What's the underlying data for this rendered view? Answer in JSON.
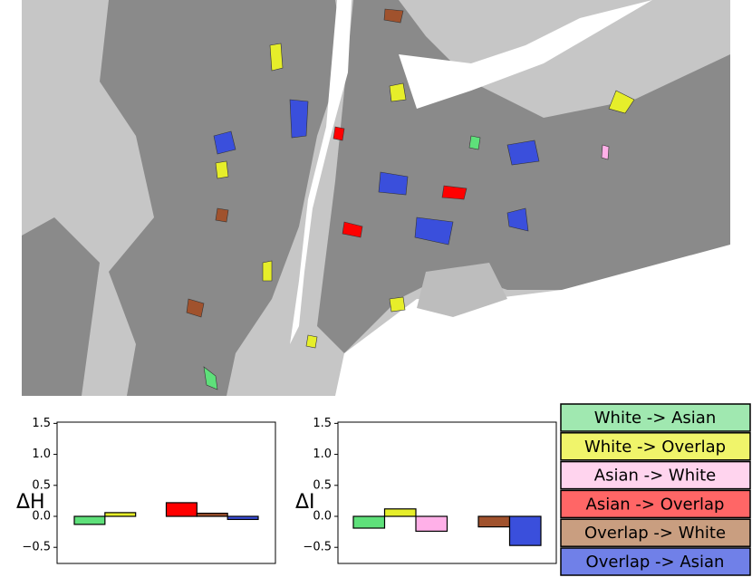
{
  "chart_data": [
    {
      "type": "bar",
      "ylabel": "ΔH",
      "values": [
        -0.13,
        0.06,
        0.0,
        0.22,
        0.05,
        -0.05
      ],
      "colors": [
        "#5ee07a",
        "#e6ee2a",
        "#ffb0e8",
        "#ff0000",
        "#a0522d",
        "#3a4fdc"
      ],
      "ylim": [
        -0.76,
        1.52
      ],
      "yticks": [
        1.5,
        {
          "value": 1.0,
          "label": "1.0"
        },
        0.5,
        {
          "value": 0.0,
          "label": "0.0"
        },
        {
          "value": -0.5,
          "label": "−0.5"
        }
      ]
    },
    {
      "type": "bar",
      "ylabel": "ΔI",
      "values": [
        -0.19,
        0.12,
        -0.24,
        0.0,
        -0.17,
        -0.47
      ],
      "colors": [
        "#5ee07a",
        "#e6ee2a",
        "#ffb0e8",
        "#ff0000",
        "#a0522d",
        "#3a4fdc"
      ],
      "ylim": [
        -0.76,
        1.52
      ],
      "yticks": [
        1.5,
        {
          "value": 1.0,
          "label": "1.0"
        },
        0.5,
        {
          "value": 0.0,
          "label": "0.0"
        },
        {
          "value": -0.5,
          "label": "−0.5"
        }
      ]
    }
  ],
  "legend": [
    {
      "name": "White -> Asian",
      "color": "#a0e8b0"
    },
    {
      "name": "White -> Overlap",
      "color": "#f0f46a"
    },
    {
      "name": "Asian -> White",
      "color": "#ffd4ee"
    },
    {
      "name": "Asian -> Overlap",
      "color": "#ff6666"
    },
    {
      "name": "Overlap -> White",
      "color": "#c99e80"
    },
    {
      "name": "Overlap -> Asian",
      "color": "#7080e8"
    }
  ]
}
